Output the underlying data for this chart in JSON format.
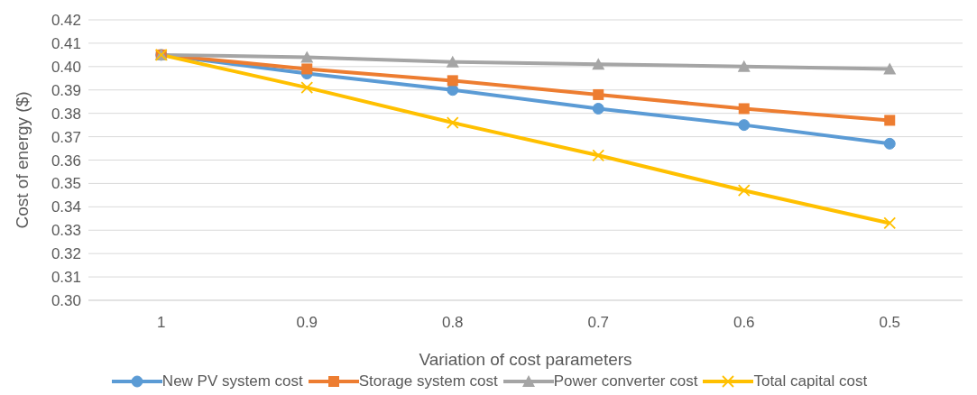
{
  "chart_data": {
    "type": "line",
    "xlabel": "Variation of cost parameters",
    "ylabel": "Cost of energy ($)",
    "categories": [
      "1",
      "0.9",
      "0.8",
      "0.7",
      "0.6",
      "0.5"
    ],
    "series": [
      {
        "name": "New PV system cost",
        "color": "#5b9bd5",
        "marker": "circle",
        "values": [
          0.405,
          0.397,
          0.39,
          0.382,
          0.375,
          0.367
        ]
      },
      {
        "name": "Storage system cost",
        "color": "#ed7d31",
        "marker": "square",
        "values": [
          0.405,
          0.399,
          0.394,
          0.388,
          0.382,
          0.377
        ]
      },
      {
        "name": "Power converter cost",
        "color": "#a5a5a5",
        "marker": "triangle",
        "values": [
          0.405,
          0.404,
          0.402,
          0.401,
          0.4,
          0.399
        ]
      },
      {
        "name": "Total capital cost",
        "color": "#ffc000",
        "marker": "cross",
        "values": [
          0.405,
          0.391,
          0.376,
          0.362,
          0.347,
          0.333
        ]
      }
    ],
    "ylim": [
      0.3,
      0.42
    ],
    "yticks": [
      {
        "value": 0.3,
        "label": "0.30"
      },
      0.31,
      0.32,
      0.33,
      0.34,
      0.35,
      0.36,
      0.37,
      0.38,
      0.39,
      {
        "value": 0.4,
        "label": "0.40"
      },
      0.41,
      0.42
    ],
    "grid": "y",
    "legend": "bottom"
  }
}
